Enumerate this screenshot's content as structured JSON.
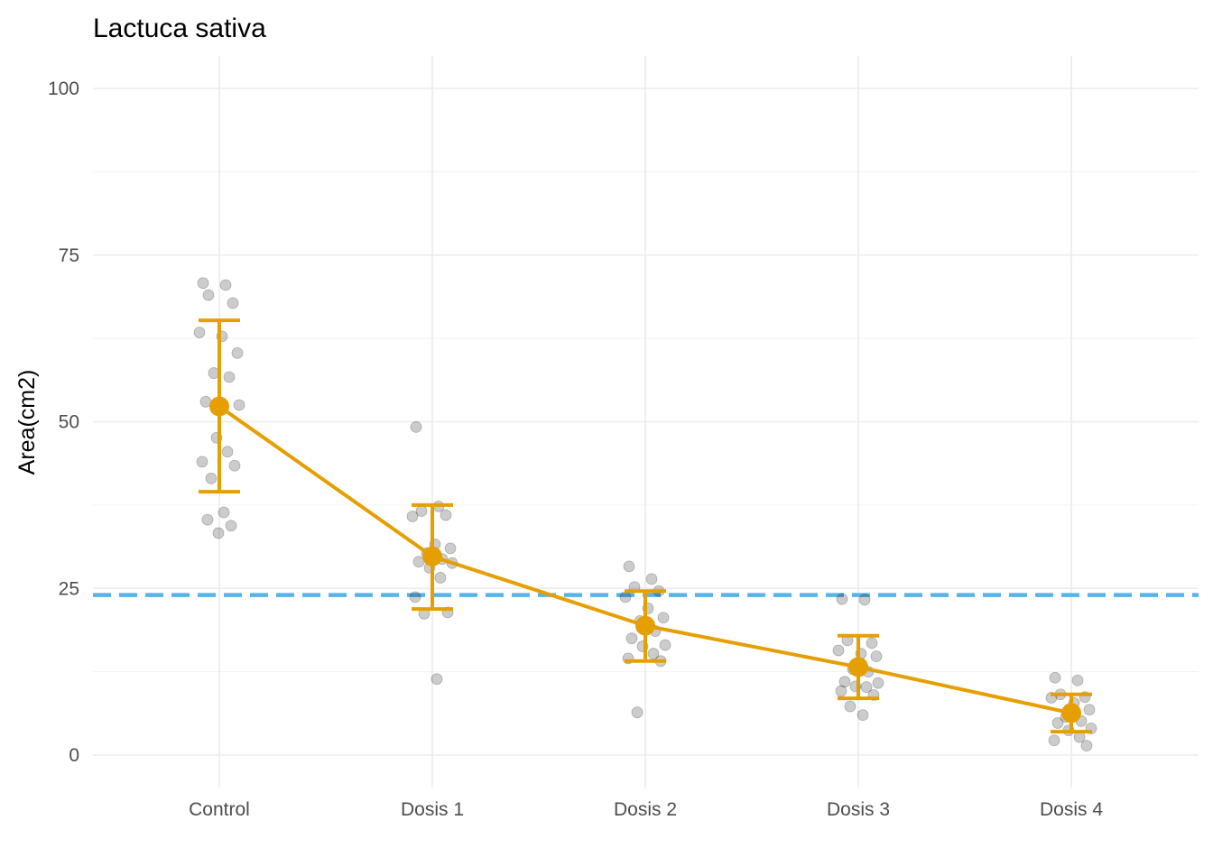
{
  "chart_data": {
    "type": "scatter",
    "title": "Lactuca sativa",
    "xlabel": "",
    "ylabel": "Area(cm2)",
    "categories": [
      "Control",
      "Dosis 1",
      "Dosis 2",
      "Dosis 3",
      "Dosis 4"
    ],
    "ylim": [
      -5,
      105
    ],
    "yticks": [
      "0",
      "25",
      "50",
      "75",
      "100"
    ],
    "grid": true,
    "reference_line": {
      "y": 24,
      "style": "dashed",
      "color": "#56B4E9"
    },
    "summary_series": {
      "means": [
        52.3,
        29.8,
        19.4,
        13.2,
        6.3
      ],
      "lower": [
        39.5,
        21.9,
        14.1,
        8.5,
        3.5
      ],
      "upper": [
        65.2,
        37.5,
        24.6,
        17.9,
        9.1
      ],
      "color": "#E69F00"
    },
    "points": [
      {
        "category": "Control",
        "values": [
          70.8,
          70.5,
          69.0,
          67.8,
          63.4,
          62.8,
          60.3,
          57.3,
          56.7,
          53.0,
          52.5,
          47.6,
          45.5,
          44.0,
          43.4,
          41.5,
          36.4,
          35.3,
          34.4,
          33.3
        ]
      },
      {
        "category": "Dosis 1",
        "values": [
          49.2,
          37.3,
          36.6,
          36.0,
          35.8,
          31.6,
          31.0,
          30.3,
          29.4,
          29.0,
          28.8,
          28.1,
          26.6,
          23.7,
          21.4,
          21.2,
          11.4
        ]
      },
      {
        "category": "Dosis 2",
        "values": [
          28.3,
          26.4,
          25.2,
          24.6,
          23.7,
          22.0,
          20.6,
          20.1,
          18.6,
          17.5,
          16.5,
          16.3,
          15.2,
          14.5,
          14.1,
          6.4
        ]
      },
      {
        "category": "Dosis 3",
        "values": [
          23.4,
          23.3,
          17.2,
          16.8,
          15.7,
          15.2,
          14.8,
          12.9,
          12.5,
          11.0,
          10.8,
          10.3,
          10.2,
          9.6,
          9.0,
          7.3,
          6.0
        ]
      },
      {
        "category": "Dosis 4",
        "values": [
          11.6,
          11.2,
          9.1,
          8.7,
          8.6,
          7.8,
          6.8,
          5.7,
          5.1,
          4.8,
          4.0,
          3.7,
          2.7,
          2.2,
          1.4
        ]
      }
    ]
  }
}
